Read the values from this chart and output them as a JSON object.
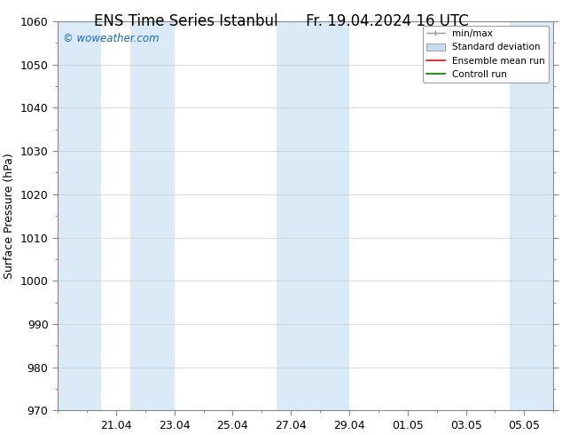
{
  "title_left": "ENS Time Series Istanbul",
  "title_right": "Fr. 19.04.2024 16 UTC",
  "ylabel": "Surface Pressure (hPa)",
  "ylim": [
    970,
    1060
  ],
  "yticks": [
    970,
    980,
    990,
    1000,
    1010,
    1020,
    1030,
    1040,
    1050,
    1060
  ],
  "xtick_labels": [
    "21.04",
    "23.04",
    "25.04",
    "27.04",
    "29.04",
    "01.05",
    "03.05",
    "05.05"
  ],
  "xtick_positions": [
    2,
    4,
    6,
    8,
    10,
    12,
    14,
    16
  ],
  "watermark": "© woweather.com",
  "watermark_color": "#1a6bbf",
  "bg_color": "#ffffff",
  "plot_bg": "#ffffff",
  "shaded_bands": [
    {
      "x_start": 0.0,
      "x_end": 1.5
    },
    {
      "x_start": 2.5,
      "x_end": 4.0
    },
    {
      "x_start": 7.5,
      "x_end": 8.5
    },
    {
      "x_start": 8.5,
      "x_end": 10.0
    },
    {
      "x_start": 15.5,
      "x_end": 17.0
    }
  ],
  "band_color": "#daeaf7",
  "legend_labels": [
    "min/max",
    "Standard deviation",
    "Ensemble mean run",
    "Controll run"
  ],
  "legend_minmax_color": "#999999",
  "legend_std_color": "#c5ddef",
  "legend_ens_color": "#ff0000",
  "legend_ctrl_color": "#007700",
  "title_fontsize": 12,
  "tick_fontsize": 9,
  "ylabel_fontsize": 9,
  "xlim": [
    0,
    17
  ],
  "spine_color": "#888888",
  "grid_color": "#cccccc"
}
